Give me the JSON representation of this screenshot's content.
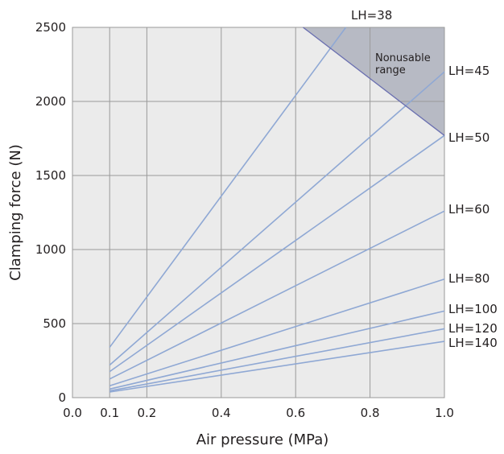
{
  "colors": {
    "plot_background": "#ebebeb",
    "grid": "#9a9a9a",
    "series_line": "#8fa8d4",
    "nonusable_fill": "#b7bac4",
    "nonusable_edge": "#6a6fb0"
  },
  "chart_data": {
    "type": "line",
    "xlabel": "Air pressure (MPa)",
    "ylabel": "Clamping force (N)",
    "xlim": [
      0.0,
      1.0
    ],
    "ylim": [
      0,
      2500
    ],
    "x_ticks": [
      "0.0",
      "0.1",
      "0.2",
      "0.4",
      "0.6",
      "0.8",
      "1.0"
    ],
    "x_tick_values": [
      0.0,
      0.1,
      0.2,
      0.4,
      0.6,
      0.8,
      1.0
    ],
    "y_ticks": [
      "0",
      "500",
      "1000",
      "1500",
      "2000",
      "2500"
    ],
    "y_tick_values": [
      0,
      500,
      1000,
      1500,
      2000,
      2500
    ],
    "grid": true,
    "series": [
      {
        "name": "LH=38",
        "x": [
          0.1,
          0.735
        ],
        "y": [
          340,
          2500
        ]
      },
      {
        "name": "LH=45",
        "x": [
          0.1,
          1.0
        ],
        "y": [
          220,
          2200
        ]
      },
      {
        "name": "LH=50",
        "x": [
          0.1,
          1.0
        ],
        "y": [
          176,
          1770
        ]
      },
      {
        "name": "LH=60",
        "x": [
          0.1,
          1.0
        ],
        "y": [
          126,
          1260
        ]
      },
      {
        "name": "LH=80",
        "x": [
          0.1,
          1.0
        ],
        "y": [
          80,
          800
        ]
      },
      {
        "name": "LH=100",
        "x": [
          0.1,
          1.0
        ],
        "y": [
          58,
          585
        ]
      },
      {
        "name": "LH=120",
        "x": [
          0.1,
          1.0
        ],
        "y": [
          46,
          465
        ]
      },
      {
        "name": "LH=140",
        "x": [
          0.1,
          1.0
        ],
        "y": [
          38,
          380
        ]
      }
    ],
    "nonusable_region": {
      "label_lines": [
        "Nonusable",
        "range"
      ],
      "boundary": [
        [
          0.62,
          2500
        ],
        [
          1.0,
          1770
        ]
      ]
    }
  }
}
